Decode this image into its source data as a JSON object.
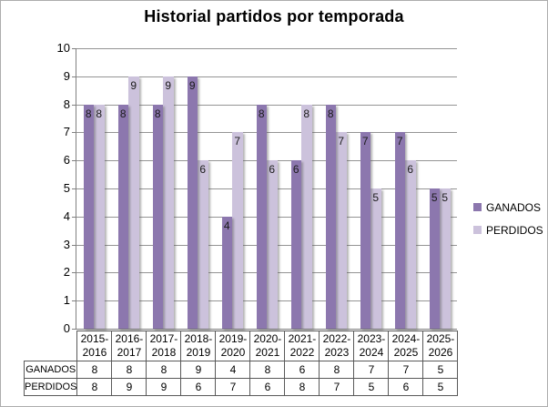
{
  "title": "Historial partidos por temporada",
  "legend": {
    "items": [
      {
        "label": "GANADOS",
        "color": "#8C77AE"
      },
      {
        "label": "PERDIDOS",
        "color": "#CCC2DC"
      }
    ]
  },
  "chart_data": {
    "type": "bar",
    "title": "Historial partidos por temporada",
    "categories": [
      "2015-2016",
      "2016-2017",
      "2017-2018",
      "2018-2019",
      "2019-2020",
      "2020-2021",
      "2021-2022",
      "2022-2023",
      "2023-2024",
      "2024-2025",
      "2025-2026"
    ],
    "series": [
      {
        "name": "GANADOS",
        "color": "#8C77AE",
        "values": [
          8,
          8,
          8,
          9,
          4,
          8,
          6,
          8,
          7,
          7,
          5
        ]
      },
      {
        "name": "PERDIDOS",
        "color": "#CCC2DC",
        "values": [
          8,
          9,
          9,
          6,
          7,
          6,
          8,
          7,
          5,
          6,
          5
        ]
      }
    ],
    "xlabel": "",
    "ylabel": "",
    "ylim": [
      0,
      10
    ],
    "ytick_step": 1,
    "grid": true,
    "legend_position": "right",
    "data_labels": "inside-end",
    "data_table_shown": true,
    "colors": {
      "gridline": "#949494",
      "axis": "#808080",
      "table_border": "#595959",
      "label_text": "#1a1a1a",
      "background": "#ffffff"
    }
  }
}
